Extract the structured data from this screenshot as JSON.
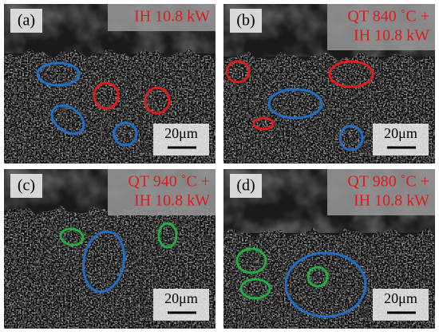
{
  "panels": [
    {
      "label": "(a)",
      "condition": [
        "IH 10.8 kW"
      ],
      "scale_bar": "20μm"
    },
    {
      "label": "(b)",
      "condition": [
        "QT 840 ˚C +",
        "IH 10.8 kW"
      ],
      "scale_bar": "20μm"
    },
    {
      "label": "(c)",
      "condition": [
        "QT 940 ˚C +",
        "IH 10.8 kW"
      ],
      "scale_bar": "20μm"
    },
    {
      "label": "(d)",
      "condition": [
        "QT 980 ˚C +",
        "IH 10.8 kW"
      ],
      "scale_bar": "20μm"
    }
  ]
}
